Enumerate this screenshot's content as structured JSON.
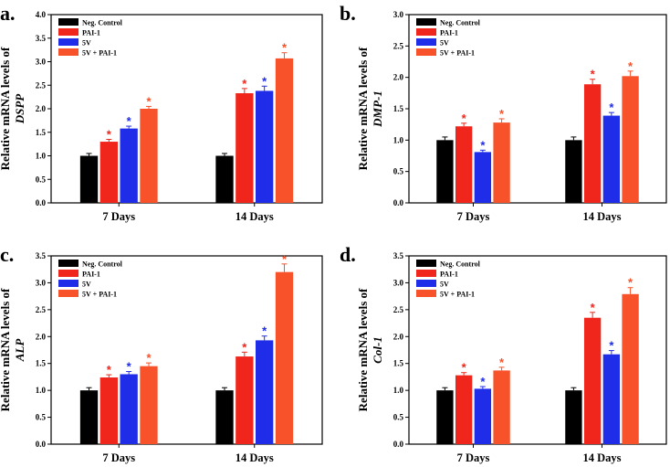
{
  "colors": {
    "Neg. Control": "#000000",
    "PAI-1": "#f0261c",
    "5V": "#1f2ce8",
    "5V + PAI-1": "#f7522a"
  },
  "chart_data": [
    {
      "type": "bar",
      "panel_label": "a.",
      "ylabel": "Relative mRNA levels of",
      "ylabel_gene": "DSPP",
      "ylim": [
        0,
        4.0
      ],
      "yticks": [
        "0.0",
        "0.5",
        "1.0",
        "1.5",
        "2.0",
        "2.5",
        "3.0",
        "3.5",
        "4.0"
      ],
      "categories": [
        "7 Days",
        "14 Days"
      ],
      "series": [
        {
          "name": "Neg. Control",
          "values": [
            1.0,
            1.0
          ],
          "errors": [
            0.05,
            0.05
          ],
          "significant": [
            false,
            false
          ]
        },
        {
          "name": "PAI-1",
          "values": [
            1.3,
            2.33
          ],
          "errors": [
            0.05,
            0.1
          ],
          "significant": [
            true,
            true
          ]
        },
        {
          "name": "5V",
          "values": [
            1.58,
            2.38
          ],
          "errors": [
            0.05,
            0.1
          ],
          "significant": [
            true,
            true
          ]
        },
        {
          "name": "5V + PAI-1",
          "values": [
            2.0,
            3.07
          ],
          "errors": [
            0.05,
            0.12
          ],
          "significant": [
            true,
            true
          ]
        }
      ],
      "legend": [
        "Neg. Control",
        "PAI-1",
        "5V",
        "5V + PAI-1"
      ],
      "legend_position": "top-left",
      "annotation": "*"
    },
    {
      "type": "bar",
      "panel_label": "b.",
      "ylabel": "Relative mRNA levels of",
      "ylabel_gene": "DMP-1",
      "ylim": [
        0,
        3.0
      ],
      "yticks": [
        "0.0",
        "0.5",
        "1.0",
        "1.5",
        "2.0",
        "2.5",
        "3.0"
      ],
      "categories": [
        "7 Days",
        "14 Days"
      ],
      "series": [
        {
          "name": "Neg. Control",
          "values": [
            1.0,
            1.0
          ],
          "errors": [
            0.05,
            0.05
          ],
          "significant": [
            false,
            false
          ]
        },
        {
          "name": "PAI-1",
          "values": [
            1.22,
            1.89
          ],
          "errors": [
            0.05,
            0.08
          ],
          "significant": [
            true,
            true
          ]
        },
        {
          "name": "5V",
          "values": [
            0.81,
            1.39
          ],
          "errors": [
            0.03,
            0.05
          ],
          "significant": [
            true,
            true
          ]
        },
        {
          "name": "5V + PAI-1",
          "values": [
            1.28,
            2.02
          ],
          "errors": [
            0.06,
            0.08
          ],
          "significant": [
            true,
            true
          ]
        }
      ],
      "legend": [
        "Neg. Control",
        "PAI-1",
        "5V",
        "5V + PAI-1"
      ],
      "legend_position": "top-left",
      "annotation": "*"
    },
    {
      "type": "bar",
      "panel_label": "c.",
      "ylabel": "Relative mRNA levels of",
      "ylabel_gene": "ALP",
      "ylim": [
        0,
        3.5
      ],
      "yticks": [
        "0.0",
        "0.5",
        "1.0",
        "1.5",
        "2.0",
        "2.5",
        "3.0",
        "3.5"
      ],
      "categories": [
        "7 Days",
        "14 Days"
      ],
      "series": [
        {
          "name": "Neg. Control",
          "values": [
            1.0,
            1.0
          ],
          "errors": [
            0.05,
            0.05
          ],
          "significant": [
            false,
            false
          ]
        },
        {
          "name": "PAI-1",
          "values": [
            1.24,
            1.63
          ],
          "errors": [
            0.05,
            0.08
          ],
          "significant": [
            true,
            true
          ]
        },
        {
          "name": "5V",
          "values": [
            1.3,
            1.93
          ],
          "errors": [
            0.05,
            0.08
          ],
          "significant": [
            true,
            true
          ]
        },
        {
          "name": "5V + PAI-1",
          "values": [
            1.45,
            3.2
          ],
          "errors": [
            0.06,
            0.15
          ],
          "significant": [
            true,
            true
          ]
        }
      ],
      "legend": [
        "Neg. Control",
        "PAI-1",
        "5V",
        "5V + PAI-1"
      ],
      "legend_position": "top-left",
      "annotation": "*"
    },
    {
      "type": "bar",
      "panel_label": "d.",
      "ylabel": "Relative mRNA levels of",
      "ylabel_gene": "Col-1",
      "ylim": [
        0,
        3.5
      ],
      "yticks": [
        "0.0",
        "0.5",
        "1.0",
        "1.5",
        "2.0",
        "2.5",
        "3.0",
        "3.5"
      ],
      "categories": [
        "7 Days",
        "14 Days"
      ],
      "series": [
        {
          "name": "Neg. Control",
          "values": [
            1.0,
            1.0
          ],
          "errors": [
            0.05,
            0.05
          ],
          "significant": [
            false,
            false
          ]
        },
        {
          "name": "PAI-1",
          "values": [
            1.28,
            2.35
          ],
          "errors": [
            0.05,
            0.1
          ],
          "significant": [
            true,
            true
          ]
        },
        {
          "name": "5V",
          "values": [
            1.03,
            1.67
          ],
          "errors": [
            0.04,
            0.07
          ],
          "significant": [
            true,
            true
          ]
        },
        {
          "name": "5V + PAI-1",
          "values": [
            1.37,
            2.79
          ],
          "errors": [
            0.06,
            0.12
          ],
          "significant": [
            true,
            true
          ]
        }
      ],
      "legend": [
        "Neg. Control",
        "PAI-1",
        "5V",
        "5V + PAI-1"
      ],
      "legend_position": "top-left",
      "annotation": "*"
    }
  ]
}
